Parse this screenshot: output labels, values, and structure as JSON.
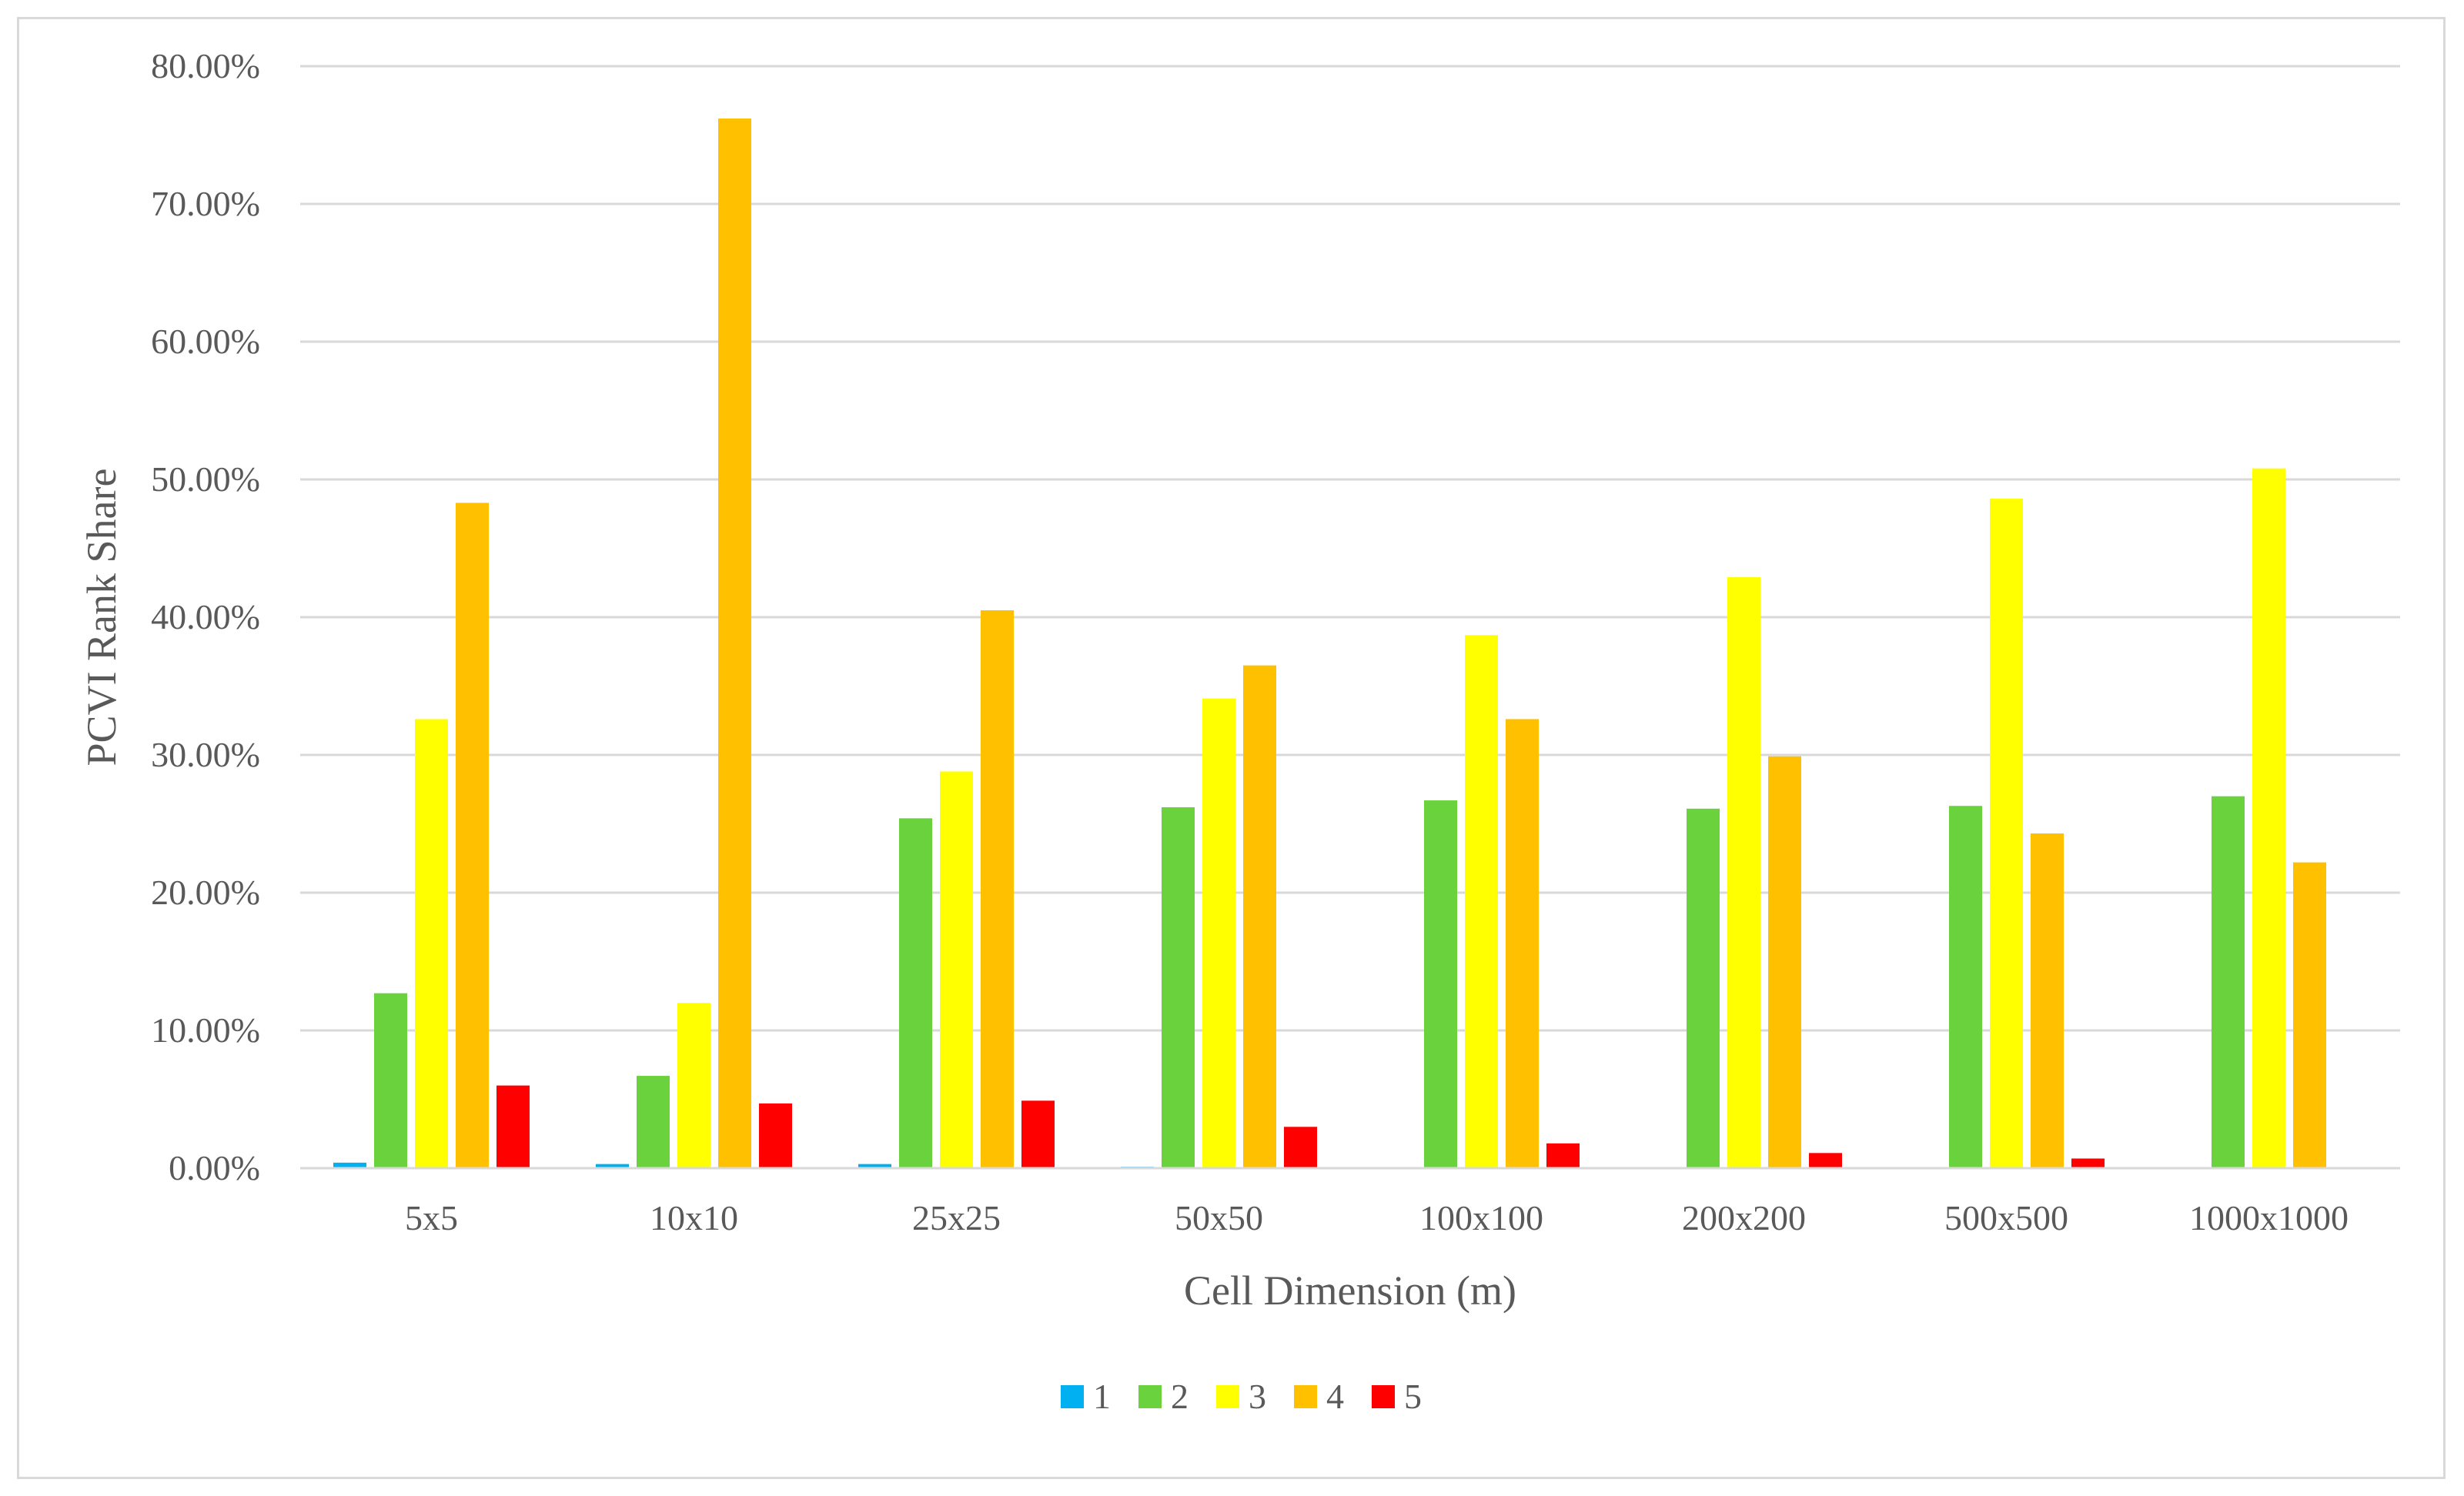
{
  "chart_data": {
    "type": "bar",
    "title": "",
    "xlabel": "Cell Dimension (m)",
    "ylabel": "PCVI Rank Share",
    "ylim": [
      0,
      0.8
    ],
    "yticks": [
      "0.00%",
      "10.00%",
      "20.00%",
      "30.00%",
      "40.00%",
      "50.00%",
      "60.00%",
      "70.00%",
      "80.00%"
    ],
    "grid": true,
    "legend_position": "bottom",
    "categories": [
      "5x5",
      "10x10",
      "25x25",
      "50x50",
      "100x100",
      "200x200",
      "500x500",
      "1000x1000"
    ],
    "series": [
      {
        "name": "1",
        "color": "#00b0f0",
        "values": [
          0.004,
          0.003,
          0.003,
          0.001,
          0.0,
          0.0,
          0.0,
          0.0
        ]
      },
      {
        "name": "2",
        "color": "#6ad23c",
        "values": [
          0.127,
          0.067,
          0.254,
          0.262,
          0.267,
          0.261,
          0.263,
          0.27
        ]
      },
      {
        "name": "3",
        "color": "#ffff00",
        "values": [
          0.326,
          0.12,
          0.288,
          0.341,
          0.387,
          0.429,
          0.486,
          0.508
        ]
      },
      {
        "name": "4",
        "color": "#ffc000",
        "values": [
          0.483,
          0.762,
          0.405,
          0.365,
          0.326,
          0.299,
          0.243,
          0.222
        ]
      },
      {
        "name": "5",
        "color": "#ff0000",
        "values": [
          0.06,
          0.047,
          0.049,
          0.03,
          0.018,
          0.011,
          0.007,
          0.0
        ]
      }
    ]
  }
}
